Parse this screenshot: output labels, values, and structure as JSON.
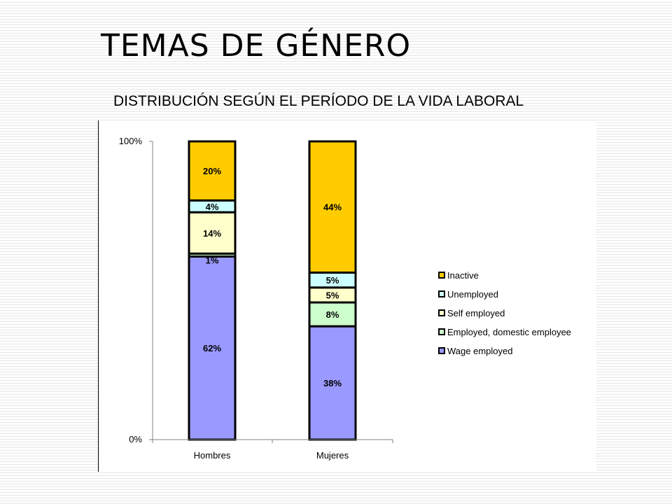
{
  "slide": {
    "title": "TEMAS DE GÉNERO",
    "subtitle": "DISTRIBUCIÓN SEGÚN EL PERÍODO DE LA VIDA LABORAL"
  },
  "chart_data": {
    "type": "bar",
    "stacked": true,
    "percent_stacked": true,
    "categories": [
      "Hombres",
      "Mujeres"
    ],
    "series": [
      {
        "name": "Wage employed",
        "values": [
          62,
          38
        ],
        "color": "#9999ff"
      },
      {
        "name": "Employed, domestic employee",
        "values": [
          1,
          8
        ],
        "color": "#ccffcc"
      },
      {
        "name": "Self employed",
        "values": [
          14,
          5
        ],
        "color": "#ffffcc"
      },
      {
        "name": "Unemployed",
        "values": [
          4,
          5
        ],
        "color": "#ccffff"
      },
      {
        "name": "Inactive",
        "values": [
          20,
          44
        ],
        "color": "#ffcc00"
      }
    ],
    "data_labels": [
      [
        "62%",
        "38%"
      ],
      [
        "1%",
        "8%"
      ],
      [
        "14%",
        "5%"
      ],
      [
        "4%",
        "5%"
      ],
      [
        "20%",
        "44%"
      ]
    ],
    "y_ticks": [
      "0%",
      "100%"
    ],
    "ylim": [
      0,
      100
    ],
    "legend_position": "right",
    "legend_order": [
      "Inactive",
      "Unemployed",
      "Self employed",
      "Employed, domestic employee",
      "Wage employed"
    ],
    "grid": false
  }
}
